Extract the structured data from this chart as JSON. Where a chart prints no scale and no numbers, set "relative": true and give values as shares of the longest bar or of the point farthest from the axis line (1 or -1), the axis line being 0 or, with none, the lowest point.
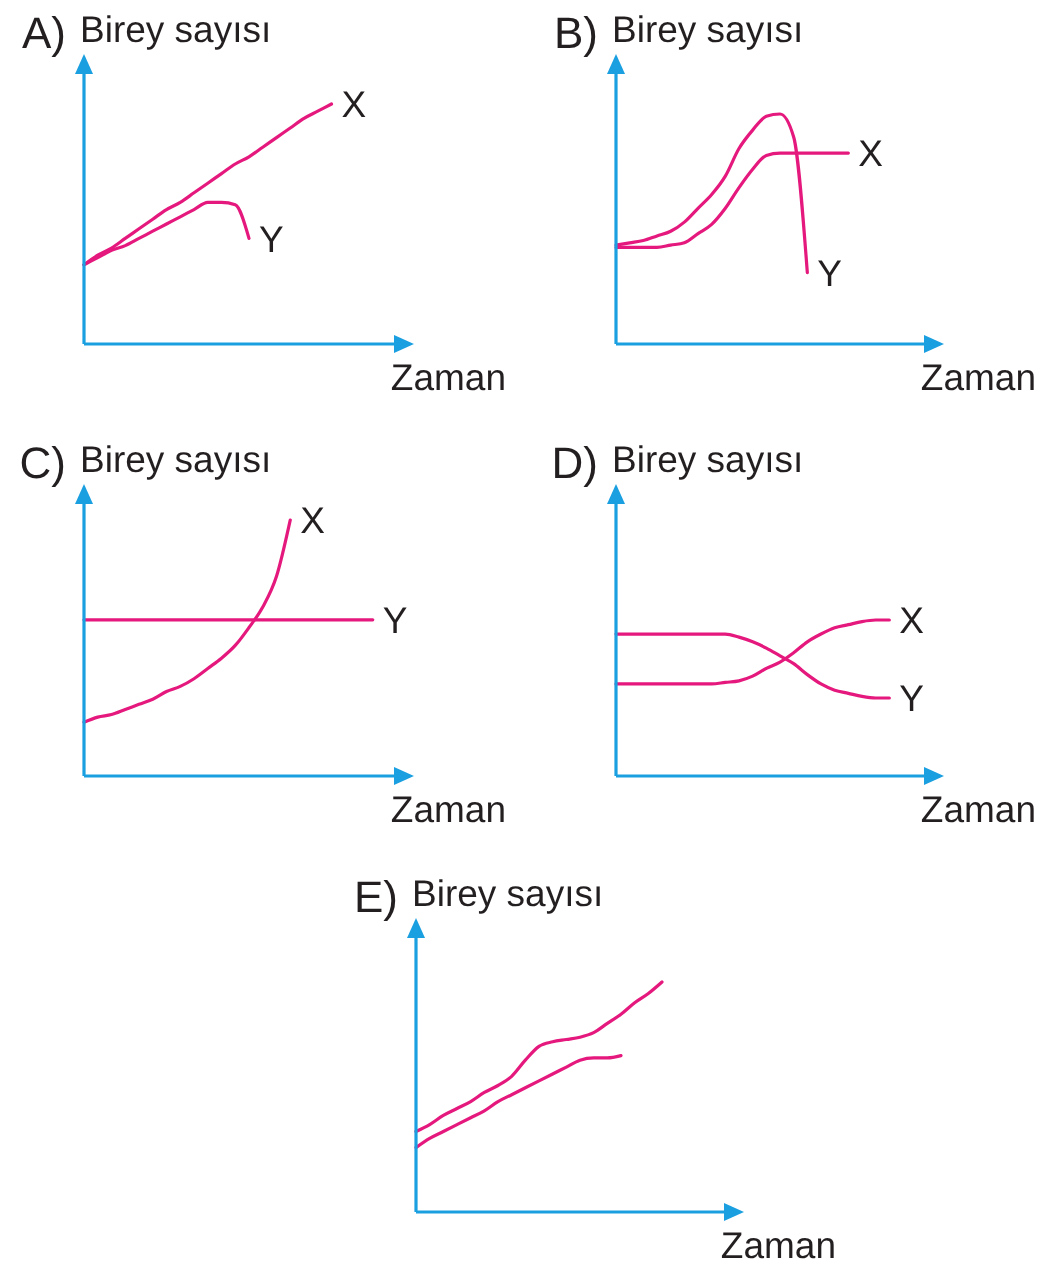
{
  "chart_data": [
    {
      "type": "line",
      "title": "A)",
      "ylabel": "Birey sayısı",
      "xlabel": "Zaman",
      "relative": true,
      "categories": [
        null,
        null,
        null,
        null,
        null,
        null,
        null,
        null,
        null,
        null,
        null,
        null,
        null,
        null,
        null,
        null,
        null,
        null,
        null,
        null,
        null,
        null,
        null,
        null,
        null
      ],
      "series": [
        {
          "name": "X",
          "color": "#e5197d",
          "values": [
            0.33,
            0.37,
            0.4,
            0.44,
            0.48,
            0.52,
            0.56,
            0.59,
            0.63,
            0.67,
            0.71,
            0.75,
            0.78,
            0.82,
            0.86,
            0.9,
            0.94,
            0.97,
            1,
            null,
            null,
            null,
            null,
            null,
            null
          ]
        },
        {
          "name": "Y",
          "color": "#e5197d",
          "values": [
            0.33,
            0.36,
            0.39,
            0.41,
            0.44,
            0.47,
            0.5,
            0.53,
            0.56,
            0.59,
            0.59,
            0.58,
            0.44,
            null,
            null,
            null,
            null,
            null,
            null,
            null,
            null,
            null,
            null,
            null,
            null
          ]
        }
      ]
    },
    {
      "type": "line",
      "title": "B)",
      "ylabel": "Birey sayısı",
      "xlabel": "Zaman",
      "relative": true,
      "categories": [
        null,
        null,
        null,
        null,
        null,
        null,
        null,
        null,
        null,
        null,
        null,
        null,
        null,
        null,
        null,
        null,
        null,
        null,
        null,
        null,
        null,
        null,
        null,
        null,
        null
      ],
      "series": [
        {
          "name": "X",
          "color": "#e5197d",
          "values": [
            0.42,
            0.42,
            0.42,
            0.42,
            0.43,
            0.44,
            0.48,
            0.52,
            0.59,
            0.68,
            0.76,
            0.82,
            0.83,
            0.83,
            0.83,
            0.83,
            0.83,
            0.83,
            null,
            null,
            null,
            null,
            null,
            null,
            null
          ]
        },
        {
          "name": "Y",
          "color": "#e5197d",
          "values": [
            0.43,
            0.44,
            0.45,
            0.47,
            0.49,
            0.53,
            0.59,
            0.65,
            0.73,
            0.85,
            0.93,
            0.99,
            1,
            0.9,
            0.31,
            null,
            null,
            null,
            null,
            null,
            null,
            null,
            null,
            null,
            null
          ]
        }
      ]
    },
    {
      "type": "line",
      "title": "C)",
      "ylabel": "Birey sayısı",
      "xlabel": "Zaman",
      "relative": true,
      "categories": [
        null,
        null,
        null,
        null,
        null,
        null,
        null,
        null,
        null,
        null,
        null,
        null,
        null,
        null,
        null,
        null,
        null,
        null,
        null,
        null,
        null,
        null,
        null,
        null,
        null
      ],
      "series": [
        {
          "name": "X",
          "color": "#e5197d",
          "values": [
            0.21,
            0.23,
            0.24,
            0.26,
            0.28,
            0.3,
            0.33,
            0.35,
            0.38,
            0.42,
            0.46,
            0.51,
            0.58,
            0.66,
            0.78,
            1,
            null,
            null,
            null,
            null,
            null,
            null,
            null,
            null,
            null
          ]
        },
        {
          "name": "Y",
          "color": "#e5197d",
          "values": [
            0.61,
            0.61,
            0.61,
            0.61,
            0.61,
            0.61,
            0.61,
            0.61,
            0.61,
            0.61,
            0.61,
            0.61,
            0.61,
            0.61,
            0.61,
            0.61,
            0.61,
            0.61,
            0.61,
            0.61,
            0.61,
            0.61,
            null,
            null,
            null
          ]
        }
      ]
    },
    {
      "type": "line",
      "title": "D)",
      "ylabel": "Birey sayısı",
      "xlabel": "Zaman",
      "relative": true,
      "categories": [
        null,
        null,
        null,
        null,
        null,
        null,
        null,
        null,
        null,
        null,
        null,
        null,
        null,
        null,
        null,
        null,
        null,
        null,
        null,
        null,
        null,
        null,
        null,
        null,
        null
      ],
      "series": [
        {
          "name": "X",
          "color": "#e5197d",
          "values": [
            0.59,
            0.59,
            0.59,
            0.59,
            0.59,
            0.59,
            0.59,
            0.59,
            0.6,
            0.61,
            0.64,
            0.69,
            0.73,
            0.79,
            0.86,
            0.91,
            0.95,
            0.97,
            0.99,
            1,
            1,
            null,
            null,
            null,
            null
          ]
        },
        {
          "name": "Y",
          "color": "#e5197d",
          "values": [
            0.91,
            0.91,
            0.91,
            0.91,
            0.91,
            0.91,
            0.91,
            0.91,
            0.91,
            0.89,
            0.86,
            0.82,
            0.77,
            0.72,
            0.65,
            0.59,
            0.55,
            0.53,
            0.51,
            0.5,
            0.5,
            null,
            null,
            null,
            null
          ]
        }
      ]
    },
    {
      "type": "line",
      "title": "E)",
      "ylabel": "Birey sayısı",
      "xlabel": "Zaman",
      "relative": true,
      "categories": [
        null,
        null,
        null,
        null,
        null,
        null,
        null,
        null,
        null,
        null,
        null,
        null,
        null,
        null,
        null,
        null,
        null,
        null,
        null,
        null,
        null,
        null,
        null,
        null,
        null
      ],
      "series": [
        {
          "color": "#e5197d",
          "values": [
            0.35,
            0.38,
            0.42,
            0.45,
            0.48,
            0.52,
            0.55,
            0.59,
            0.66,
            0.72,
            0.74,
            0.75,
            0.76,
            0.78,
            0.82,
            0.86,
            0.91,
            0.95,
            1,
            null,
            null,
            null,
            null,
            null,
            null
          ]
        },
        {
          "color": "#e5197d",
          "values": [
            0.28,
            0.32,
            0.35,
            0.38,
            0.41,
            0.44,
            0.48,
            0.51,
            0.54,
            0.57,
            0.6,
            0.63,
            0.66,
            0.67,
            0.67,
            0.68,
            null,
            null,
            null,
            null,
            null,
            null,
            null,
            null,
            null
          ]
        }
      ]
    }
  ]
}
